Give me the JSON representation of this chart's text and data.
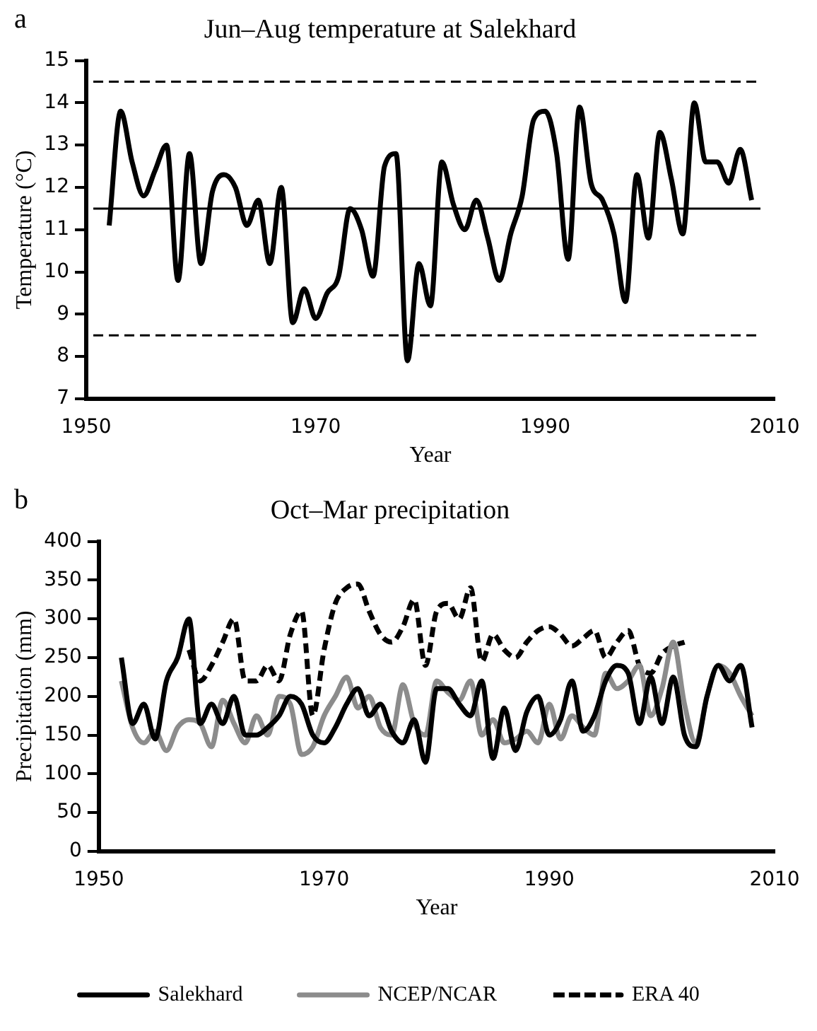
{
  "chart_data": [
    {
      "type": "line",
      "title": "Jun–Aug temperature at Salekhard",
      "xlabel": "Year",
      "ylabel": "Temperature (°C)",
      "annotations": [
        "a"
      ],
      "x": [
        1952,
        1953,
        1954,
        1955,
        1956,
        1957,
        1958,
        1959,
        1960,
        1961,
        1962,
        1963,
        1964,
        1965,
        1966,
        1967,
        1968,
        1969,
        1970,
        1971,
        1972,
        1973,
        1974,
        1975,
        1976,
        1977,
        1978,
        1979,
        1980,
        1981,
        1982,
        1983,
        1984,
        1985,
        1986,
        1987,
        1988,
        1989,
        1990,
        1991,
        1992,
        1993,
        1994,
        1995,
        1996,
        1997,
        1998,
        1999,
        2000,
        2001,
        2002,
        2003,
        2004,
        2005,
        2006,
        2007,
        2008
      ],
      "series": [
        {
          "color": "#000000",
          "values": [
            11.1,
            13.8,
            12.6,
            11.8,
            12.4,
            13.0,
            9.8,
            12.8,
            10.2,
            11.9,
            12.3,
            12.0,
            11.1,
            11.7,
            10.2,
            12.0,
            8.8,
            9.6,
            8.9,
            9.5,
            9.9,
            11.5,
            11.0,
            9.9,
            12.5,
            12.8,
            7.9,
            10.2,
            9.2,
            12.6,
            11.6,
            11.0,
            11.7,
            10.8,
            9.8,
            10.9,
            11.8,
            13.6,
            13.8,
            12.8,
            10.3,
            13.9,
            12.1,
            11.7,
            10.9,
            9.3,
            12.3,
            10.8,
            13.3,
            12.2,
            10.9,
            14.0,
            12.6,
            12.6,
            12.1,
            12.9,
            11.7
          ]
        }
      ],
      "ref_lines": [
        {
          "axis": "y",
          "value": 14.5,
          "line_style": "dashed",
          "color": "#000000"
        },
        {
          "axis": "y",
          "value": 11.5,
          "line_style": "solid",
          "color": "#000000"
        },
        {
          "axis": "y",
          "value": 8.5,
          "line_style": "dashed",
          "color": "#000000"
        }
      ],
      "xlim": [
        1950,
        2010
      ],
      "xticks": [
        1950,
        1970,
        1990,
        2010
      ],
      "ylim": [
        7,
        15
      ],
      "yticks": [
        7,
        8,
        9,
        10,
        11,
        12,
        13,
        14,
        15
      ],
      "grid": false,
      "legend": false,
      "line_style": "solid",
      "marker": "none"
    },
    {
      "type": "line",
      "title": "Oct–Mar precipitation",
      "xlabel": "Year",
      "ylabel": "Precipitation (mm)",
      "annotations": [
        "b"
      ],
      "x": [
        1952,
        1953,
        1954,
        1955,
        1956,
        1957,
        1958,
        1959,
        1960,
        1961,
        1962,
        1963,
        1964,
        1965,
        1966,
        1967,
        1968,
        1969,
        1970,
        1971,
        1972,
        1973,
        1974,
        1975,
        1976,
        1977,
        1978,
        1979,
        1980,
        1981,
        1982,
        1983,
        1984,
        1985,
        1986,
        1987,
        1988,
        1989,
        1990,
        1991,
        1992,
        1993,
        1994,
        1995,
        1996,
        1997,
        1998,
        1999,
        2000,
        2001,
        2002,
        2003,
        2004,
        2005,
        2006,
        2007,
        2008
      ],
      "series": [
        {
          "name": "Salekhard",
          "color": "#000000",
          "line_style": "solid",
          "values": [
            250,
            165,
            190,
            145,
            220,
            250,
            300,
            165,
            190,
            165,
            200,
            150,
            150,
            160,
            175,
            200,
            190,
            150,
            140,
            160,
            190,
            210,
            175,
            190,
            155,
            140,
            170,
            115,
            210,
            210,
            190,
            175,
            220,
            120,
            185,
            130,
            180,
            200,
            150,
            170,
            220,
            155,
            175,
            220,
            240,
            230,
            165,
            225,
            165,
            225,
            150,
            135,
            200,
            240,
            220,
            240,
            160
          ]
        },
        {
          "name": "NCEP/NCAR",
          "color": "#8c8c8c",
          "line_style": "solid",
          "values": [
            220,
            160,
            140,
            155,
            130,
            160,
            170,
            165,
            135,
            195,
            165,
            140,
            175,
            150,
            200,
            190,
            125,
            135,
            175,
            200,
            225,
            185,
            200,
            160,
            150,
            215,
            165,
            150,
            220,
            205,
            195,
            220,
            150,
            170,
            140,
            145,
            155,
            140,
            190,
            145,
            175,
            160,
            150,
            230,
            210,
            220,
            240,
            175,
            210,
            270,
            190,
            140,
            200,
            240,
            230,
            200,
            175
          ]
        },
        {
          "name": "ERA 40",
          "color": "#000000",
          "line_style": "dashed",
          "x": [
            1958,
            1959,
            1960,
            1961,
            1962,
            1963,
            1964,
            1965,
            1966,
            1967,
            1968,
            1969,
            1970,
            1971,
            1972,
            1973,
            1974,
            1975,
            1976,
            1977,
            1978,
            1979,
            1980,
            1981,
            1982,
            1983,
            1984,
            1985,
            1986,
            1987,
            1988,
            1989,
            1990,
            1991,
            1992,
            1993,
            1994,
            1995,
            1996,
            1997,
            1998,
            1999,
            2000,
            2001,
            2002
          ],
          "values": [
            260,
            220,
            240,
            270,
            300,
            220,
            220,
            240,
            220,
            280,
            310,
            175,
            260,
            320,
            340,
            345,
            310,
            280,
            270,
            290,
            325,
            240,
            310,
            320,
            300,
            340,
            245,
            280,
            260,
            250,
            270,
            285,
            290,
            280,
            265,
            275,
            285,
            250,
            270,
            285,
            240,
            230,
            255,
            265,
            270
          ]
        }
      ],
      "xlim": [
        1950,
        2010
      ],
      "xticks": [
        1950,
        1970,
        1990,
        2010
      ],
      "ylim": [
        0,
        400
      ],
      "yticks": [
        0,
        50,
        100,
        150,
        200,
        250,
        300,
        350,
        400
      ],
      "grid": false,
      "legend": "bottom",
      "marker": "none"
    }
  ]
}
